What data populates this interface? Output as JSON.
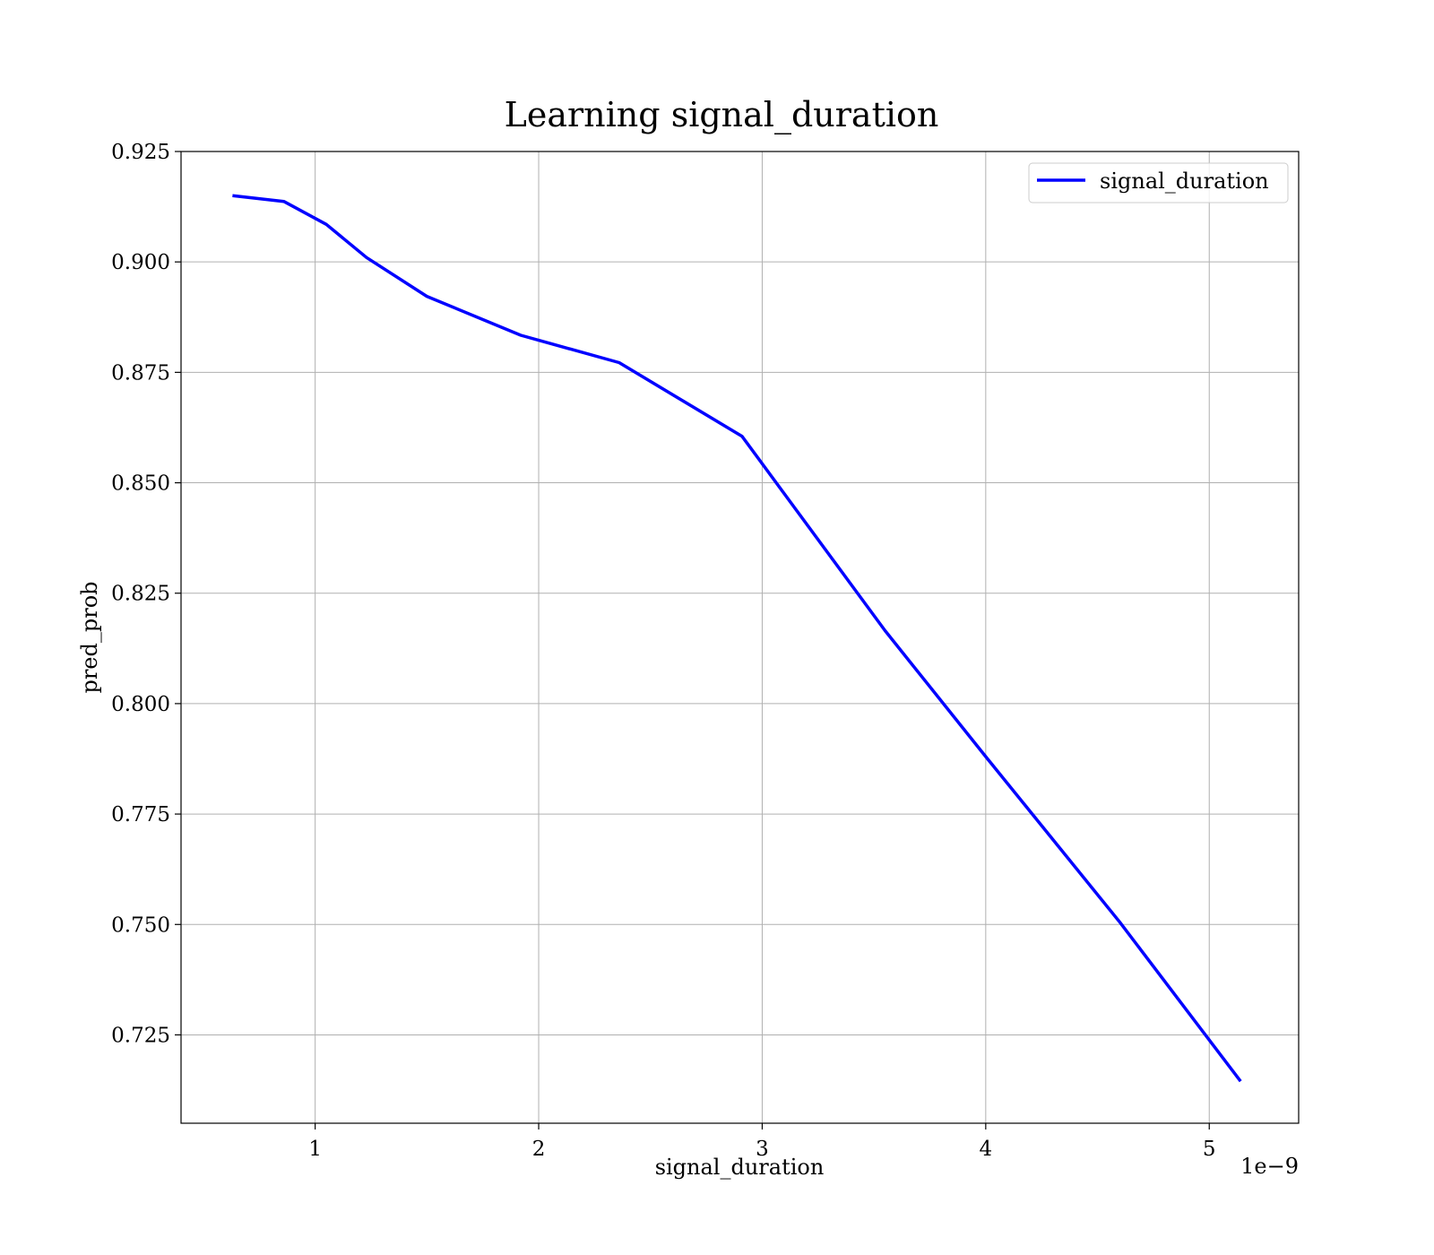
{
  "chart_data": {
    "type": "line",
    "title": "Learning signal_duration",
    "xlabel": "signal_duration",
    "ylabel": "pred_prob",
    "x_offset_text": "1e−9",
    "xlim": [
      4e-10,
      5.4e-09
    ],
    "ylim": [
      0.705,
      0.925
    ],
    "xticks": [
      1e-09,
      2e-09,
      3e-09,
      4e-09,
      5e-09
    ],
    "xtick_labels": [
      "1",
      "2",
      "3",
      "4",
      "5"
    ],
    "yticks": [
      0.725,
      0.75,
      0.775,
      0.8,
      0.825,
      0.85,
      0.875,
      0.9,
      0.925
    ],
    "ytick_labels": [
      "0.725",
      "0.750",
      "0.775",
      "0.800",
      "0.825",
      "0.850",
      "0.875",
      "0.900",
      "0.925"
    ],
    "grid": true,
    "legend_position": "top-right",
    "series": [
      {
        "name": "signal_duration",
        "color": "#0000ff",
        "x": [
          6.3e-10,
          8.6e-10,
          1.05e-09,
          1.23e-09,
          1.5e-09,
          1.92e-09,
          2.36e-09,
          2.91e-09,
          3.55e-09,
          4e-09,
          4.6e-09,
          5.14e-09
        ],
        "y": [
          0.915,
          0.9137,
          0.9085,
          0.901,
          0.8922,
          0.8834,
          0.8772,
          0.8605,
          0.8165,
          0.788,
          0.7505,
          0.7145
        ]
      }
    ]
  }
}
